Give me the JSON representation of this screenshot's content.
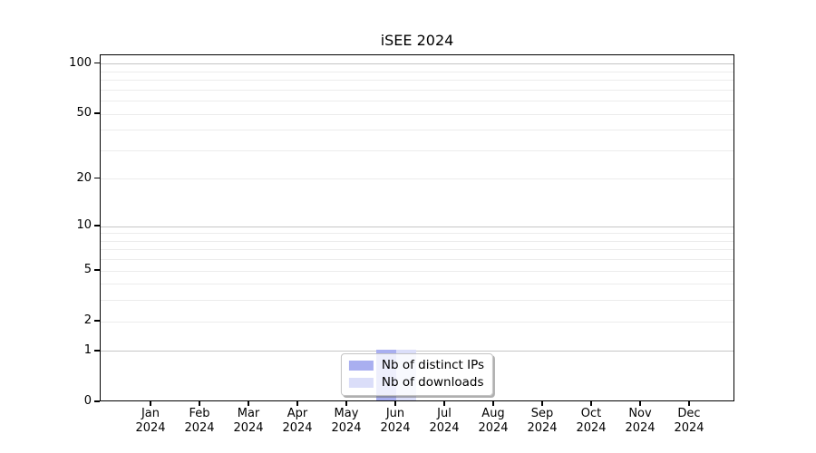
{
  "chart_data": {
    "type": "bar",
    "title": "iSEE 2024",
    "y_scale": "log1p",
    "ylim": [
      0,
      113
    ],
    "grid": true,
    "legend_position": "lower center",
    "categories": [
      "Jan 2024",
      "Feb 2024",
      "Mar 2024",
      "Apr 2024",
      "May 2024",
      "Jun 2024",
      "Jul 2024",
      "Aug 2024",
      "Sep 2024",
      "Oct 2024",
      "Nov 2024",
      "Dec 2024"
    ],
    "x_tick_months": [
      "Jan",
      "Feb",
      "Mar",
      "Apr",
      "May",
      "Jun",
      "Jul",
      "Aug",
      "Sep",
      "Oct",
      "Nov",
      "Dec"
    ],
    "x_tick_year": "2024",
    "y_ticks": [
      0,
      1,
      2,
      5,
      10,
      20,
      50,
      100
    ],
    "y_major_grid": [
      1,
      10,
      100
    ],
    "y_minor_grid": [
      2,
      3,
      4,
      5,
      6,
      7,
      8,
      9,
      20,
      30,
      40,
      50,
      60,
      70,
      80,
      90
    ],
    "series": [
      {
        "name": "Nb of distinct IPs",
        "color": "#a9aff0",
        "values": [
          0,
          0,
          0,
          0,
          0,
          1,
          0,
          0,
          0,
          0,
          0,
          0
        ]
      },
      {
        "name": "Nb of downloads",
        "color": "#dbdef9",
        "values": [
          0,
          0,
          0,
          0,
          0,
          1,
          0,
          0,
          0,
          0,
          0,
          0
        ]
      }
    ],
    "colors": {
      "major_grid": "#c6c6c6",
      "minor_grid": "#ececec",
      "spine": "#000000",
      "text": "#000000"
    }
  }
}
